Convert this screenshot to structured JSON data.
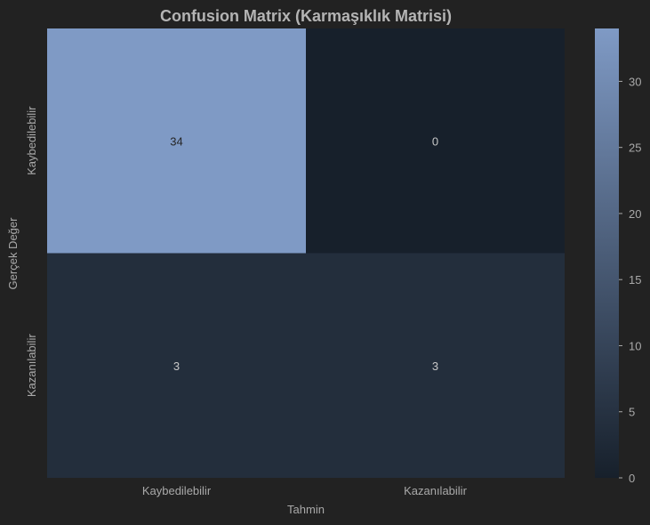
{
  "chart_data": {
    "type": "heatmap",
    "title": "Confusion Matrix (Karmaşıklık Matrisi)",
    "xlabel": "Tahmin",
    "ylabel": "Gerçek Değer",
    "x_categories": [
      "Kaybedilebilir",
      "Kazanılabilir"
    ],
    "y_categories": [
      "Kaybedilebilir",
      "Kazanılabilir"
    ],
    "values": [
      [
        34,
        0
      ],
      [
        3,
        3
      ]
    ],
    "annotations": [
      "34",
      "0",
      "3",
      "3"
    ],
    "colorbar": {
      "range": [
        0,
        34
      ],
      "ticks": [
        0,
        5,
        10,
        15,
        20,
        25,
        30
      ],
      "tick_labels": [
        "0",
        "5",
        "10",
        "15",
        "20",
        "25",
        "30"
      ]
    },
    "colors": {
      "background": "#222222",
      "low": "#17202b",
      "high": "#7f9ac5",
      "text": "#a9a9a9"
    }
  }
}
